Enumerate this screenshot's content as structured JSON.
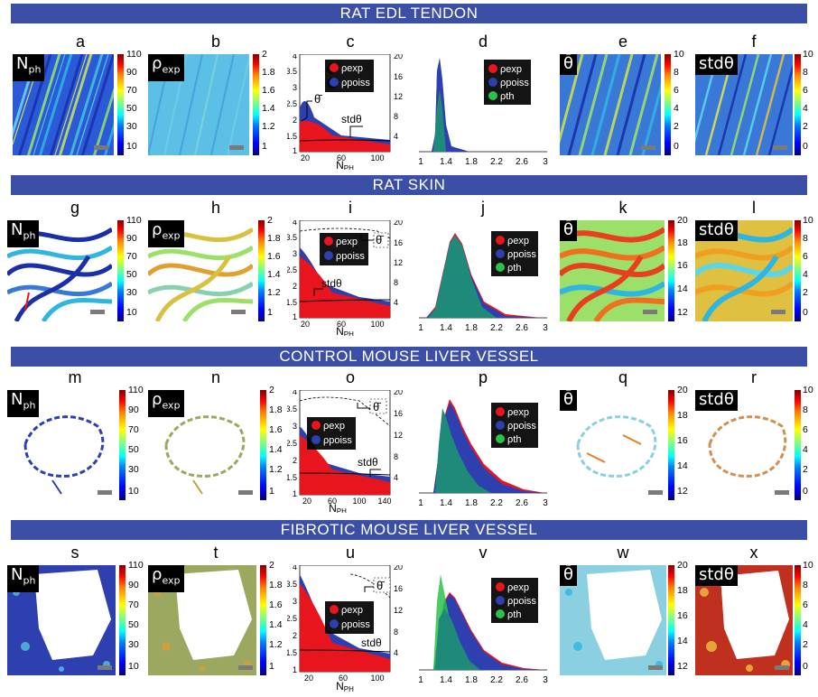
{
  "rows": [
    {
      "banner": "RAT EDL TENDON",
      "panels": {
        "a": {
          "letter": "a",
          "tag": "N",
          "tag_sub": "ph",
          "ticks": [
            "110",
            "90",
            "70",
            "50",
            "30",
            "10"
          ]
        },
        "b": {
          "letter": "b",
          "tag": "ρ",
          "tag_sub": "exp",
          "ticks": [
            "2",
            "1.8",
            "1.6",
            "1.4",
            "1.2",
            "1"
          ]
        },
        "c": {
          "letter": "c",
          "yleft": [
            "4",
            "3.5",
            "3",
            "2.5",
            "2",
            "1.5",
            "1"
          ],
          "yright": [
            "20",
            "16",
            "12",
            "8",
            "4"
          ],
          "xticks": [
            "20",
            "60",
            "100"
          ],
          "xlabel": "N",
          "xlabel_sub": "PH",
          "mean_label": "θ̄",
          "std_label": "stdθ",
          "legend": [
            "ρexp",
            "ρpoiss"
          ]
        },
        "d": {
          "letter": "d",
          "xticks": [
            "1",
            "1.4",
            "1.8",
            "2.2",
            "2.6",
            "3"
          ],
          "legend": [
            "ρexp",
            "ρpoiss",
            "ρth"
          ]
        },
        "e": {
          "letter": "e",
          "tag": "θ̄",
          "tag_sub": "",
          "ticks": [
            "10",
            "8",
            "6",
            "4",
            "2",
            "0"
          ]
        },
        "f": {
          "letter": "f",
          "tag": "stdθ",
          "tag_sub": "",
          "ticks": [
            "10",
            "8",
            "6",
            "4",
            "2",
            "0"
          ]
        }
      }
    },
    {
      "banner": "RAT SKIN",
      "panels": {
        "a": {
          "letter": "g",
          "tag": "N",
          "tag_sub": "ph",
          "ticks": [
            "110",
            "90",
            "70",
            "50",
            "30",
            "10"
          ]
        },
        "b": {
          "letter": "h",
          "tag": "ρ",
          "tag_sub": "exp",
          "ticks": [
            "2",
            "1.8",
            "1.6",
            "1.4",
            "1.2",
            "1"
          ]
        },
        "c": {
          "letter": "i",
          "yleft": [
            "4",
            "3.5",
            "3",
            "2.5",
            "2",
            "1.5",
            "1"
          ],
          "yright": [
            "20",
            "16",
            "12",
            "8",
            "4"
          ],
          "xticks": [
            "20",
            "60",
            "100"
          ],
          "xlabel": "N",
          "xlabel_sub": "PH",
          "mean_label": "θ̄",
          "std_label": "stdθ",
          "legend": [
            "ρexp",
            "ρpoiss"
          ]
        },
        "d": {
          "letter": "j",
          "xticks": [
            "1",
            "1.4",
            "1.8",
            "2.2",
            "2.6",
            "3"
          ],
          "legend": [
            "ρexp",
            "ρpoiss",
            "ρth"
          ]
        },
        "e": {
          "letter": "k",
          "tag": "θ̄",
          "tag_sub": "",
          "ticks": [
            "20",
            "18",
            "16",
            "14",
            "12"
          ]
        },
        "f": {
          "letter": "l",
          "tag": "stdθ",
          "tag_sub": "",
          "ticks": [
            "10",
            "8",
            "6",
            "4",
            "2",
            "0"
          ]
        }
      }
    },
    {
      "banner": "CONTROL MOUSE  LIVER VESSEL",
      "panels": {
        "a": {
          "letter": "m",
          "tag": "N",
          "tag_sub": "ph",
          "ticks": [
            "110",
            "90",
            "70",
            "50",
            "30",
            "10"
          ]
        },
        "b": {
          "letter": "n",
          "tag": "ρ",
          "tag_sub": "exp",
          "ticks": [
            "2",
            "1.8",
            "1.6",
            "1.4",
            "1.2",
            "1"
          ]
        },
        "c": {
          "letter": "o",
          "yleft": [
            "4",
            "3.5",
            "3",
            "2.5",
            "2",
            "1.5",
            "1"
          ],
          "yright": [
            "20",
            "16",
            "12",
            "8",
            "4"
          ],
          "xticks": [
            "20",
            "60",
            "100",
            "140"
          ],
          "xlabel": "N",
          "xlabel_sub": "PH",
          "mean_label": "θ̄",
          "std_label": "stdθ",
          "legend": [
            "ρexp",
            "ρpoiss"
          ]
        },
        "d": {
          "letter": "p",
          "xticks": [
            "1",
            "1.4",
            "1.8",
            "2.2",
            "2.6",
            "3"
          ],
          "legend": [
            "ρexp",
            "ρpoiss",
            "ρth"
          ]
        },
        "e": {
          "letter": "q",
          "tag": "θ̄",
          "tag_sub": "",
          "ticks": [
            "20",
            "18",
            "16",
            "14",
            "12"
          ]
        },
        "f": {
          "letter": "r",
          "tag": "stdθ",
          "tag_sub": "",
          "ticks": [
            "10",
            "8",
            "6",
            "4",
            "2",
            "0"
          ]
        }
      }
    },
    {
      "banner": "FIBROTIC MOUSE LIVER VESSEL",
      "panels": {
        "a": {
          "letter": "s",
          "tag": "N",
          "tag_sub": "ph",
          "ticks": [
            "110",
            "90",
            "70",
            "50",
            "30",
            "10"
          ]
        },
        "b": {
          "letter": "t",
          "tag": "ρ",
          "tag_sub": "exp",
          "ticks": [
            "2",
            "1.8",
            "1.6",
            "1.4",
            "1.2",
            "1"
          ]
        },
        "c": {
          "letter": "u",
          "yleft": [
            "4",
            "3.5",
            "3",
            "2.5",
            "2",
            "1.5",
            "1"
          ],
          "yright": [
            "20",
            "16",
            "12",
            "8",
            "4"
          ],
          "xticks": [
            "20",
            "60",
            "100"
          ],
          "xlabel": "N",
          "xlabel_sub": "PH",
          "mean_label": "θ̄",
          "std_label": "stdθ",
          "legend": [
            "ρexp",
            "ρpoiss"
          ]
        },
        "d": {
          "letter": "v",
          "xticks": [
            "1",
            "1.4",
            "1.8",
            "2.2",
            "2.6",
            "3"
          ],
          "legend": [
            "ρexp",
            "ρpoiss",
            "ρth"
          ]
        },
        "e": {
          "letter": "w",
          "tag": "θ̄",
          "tag_sub": "",
          "ticks": [
            "20",
            "18",
            "16",
            "14",
            "12"
          ]
        },
        "f": {
          "letter": "x",
          "tag": "stdθ",
          "tag_sub": "",
          "ticks": [
            "10",
            "8",
            "6",
            "4",
            "2",
            "0"
          ]
        }
      }
    }
  ],
  "colors": {
    "banner": "#3c4fa6",
    "exp": "#e8141e",
    "poiss": "#2e3fb0",
    "th": "#29c24a",
    "teal": "#1f8a7a"
  }
}
